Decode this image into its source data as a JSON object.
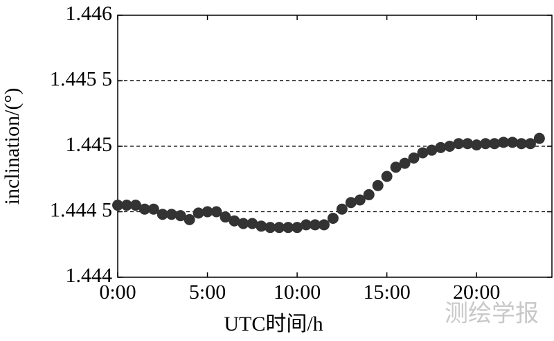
{
  "chart_data": {
    "type": "scatter",
    "xlabel": "UTC时间/h",
    "ylabel": "inclination/(°)",
    "watermark": "测绘学报",
    "color": "#333333",
    "grid": true,
    "xlim": [
      0,
      24.2
    ],
    "ylim": [
      1.444,
      1.446
    ],
    "xticks": [
      {
        "value": 0,
        "label": "0:00"
      },
      {
        "value": 5,
        "label": "5:00"
      },
      {
        "value": 10,
        "label": "10:00"
      },
      {
        "value": 15,
        "label": "15:00"
      },
      {
        "value": 20,
        "label": "20:00"
      }
    ],
    "yticks": [
      1.444,
      {
        "value": 1.4445,
        "label": "1.444 5"
      },
      1.445,
      {
        "value": 1.4455,
        "label": "1.445 5"
      },
      1.446
    ],
    "x": [
      0,
      0.5,
      1,
      1.5,
      2,
      2.5,
      3,
      3.5,
      4,
      4.5,
      5,
      5.5,
      6,
      6.5,
      7,
      7.5,
      8,
      8.5,
      9,
      9.5,
      10,
      10.5,
      11,
      11.5,
      12,
      12.5,
      13,
      13.5,
      14,
      14.5,
      15,
      15.5,
      16,
      16.5,
      17,
      17.5,
      18,
      18.5,
      19,
      19.5,
      20,
      20.5,
      21,
      21.5,
      22,
      22.5,
      23,
      23.5
    ],
    "values": [
      1.44455,
      1.44455,
      1.44455,
      1.44452,
      1.44452,
      1.44448,
      1.44448,
      1.44447,
      1.44444,
      1.44449,
      1.4445,
      1.4445,
      1.44446,
      1.44443,
      1.44441,
      1.44441,
      1.44439,
      1.44438,
      1.44438,
      1.44438,
      1.44438,
      1.4444,
      1.4444,
      1.4444,
      1.44445,
      1.44452,
      1.44457,
      1.44459,
      1.44463,
      1.4447,
      1.44477,
      1.44484,
      1.44487,
      1.44491,
      1.44495,
      1.44497,
      1.44499,
      1.445,
      1.44502,
      1.44502,
      1.44501,
      1.44502,
      1.44502,
      1.44503,
      1.44503,
      1.44502,
      1.44502,
      1.44506
    ]
  }
}
